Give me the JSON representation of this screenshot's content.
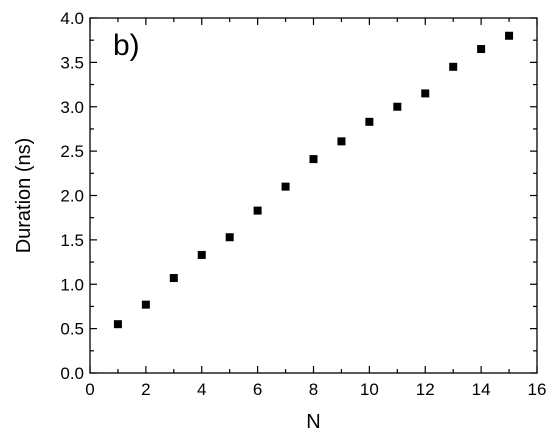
{
  "chart_data": {
    "type": "scatter",
    "panel_label": "b)",
    "xlabel": "N",
    "ylabel": "Duration (ns)",
    "xlim": [
      0,
      16
    ],
    "ylim": [
      0.0,
      4.0
    ],
    "x_ticks": [
      0,
      2,
      4,
      6,
      8,
      10,
      12,
      14,
      16
    ],
    "x_tick_labels": [
      "0",
      "2",
      "4",
      "6",
      "8",
      "10",
      "12",
      "14",
      "16"
    ],
    "y_ticks": [
      0.0,
      0.5,
      1.0,
      1.5,
      2.0,
      2.5,
      3.0,
      3.5,
      4.0
    ],
    "y_tick_labels": [
      "0.0",
      "0.5",
      "1.0",
      "1.5",
      "2.0",
      "2.5",
      "3.0",
      "3.5",
      "4.0"
    ],
    "grid": false,
    "marker": "square",
    "marker_color": "#000000",
    "series": [
      {
        "x": [
          1,
          2,
          3,
          4,
          5,
          6,
          7,
          8,
          9,
          10,
          11,
          12,
          13,
          14,
          15
        ],
        "y": [
          0.55,
          0.77,
          1.07,
          1.33,
          1.53,
          1.83,
          2.1,
          2.41,
          2.61,
          2.83,
          3.0,
          3.15,
          3.45,
          3.65,
          3.8
        ]
      }
    ]
  }
}
